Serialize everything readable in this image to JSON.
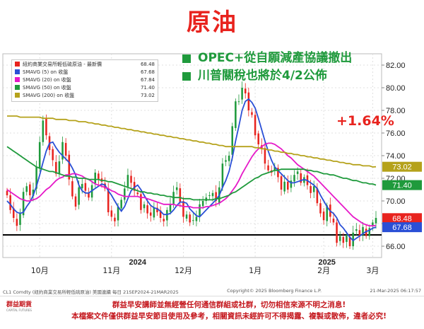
{
  "title": "原油",
  "bullets": [
    "OPEC+從自願減產協議撤出",
    "川普關稅也將於4/2公佈"
  ],
  "change_text": "+1.64%",
  "legend": [
    {
      "name": "紐約商業交易所輕低硫原油 - 最新價",
      "value": "68.48",
      "color": "#e8231e"
    },
    {
      "name": "SMAVG (5)  on 收盤",
      "value": "67.68",
      "color": "#2a4fd6"
    },
    {
      "name": "SMAVG (20)  on 收盤",
      "value": "67.84",
      "color": "#e619c8"
    },
    {
      "name": "SMAVG (50)  on 收盤",
      "value": "71.40",
      "color": "#1f9a3c"
    },
    {
      "name": "SMAVG (200)  on 收盤",
      "value": "73.02",
      "color": "#b5a21b"
    }
  ],
  "footer": {
    "left": "CL1 Comdty (紐約商業交易所輕低硫原油) 美國連續    每日  21SEP2024-21MAR2025",
    "center": "Copyright© 2025 Bloomberg Finance L.P.",
    "right": "21-Mar-2025 06:17:57"
  },
  "disclaimer": {
    "line1": "群益早安講師並無經營任何通信群組或社群，切勿相信來源不明之消息!",
    "line2": "本檔案文件僅供群益早安節目使用及參考，相關資訊未經許可不得揭露、複製或散佈，違者必究!"
  },
  "logo": {
    "text": "群益期貨",
    "sub": "CAPITAL FUTURES"
  },
  "chart_data": {
    "type": "line",
    "ylim": [
      65,
      83
    ],
    "yticks": [
      "66.00",
      "68.00",
      "70.00",
      "72.00",
      "74.00",
      "76.00",
      "78.00",
      "80.00",
      "82.00"
    ],
    "ytick_values": [
      66,
      68,
      70,
      72,
      74,
      76,
      78,
      80,
      82
    ],
    "month_labels": [
      "10月",
      "11月",
      "12月",
      "1月",
      "2月",
      "3月"
    ],
    "year_labels": [
      "2024",
      "2025"
    ],
    "support_level": 67.0,
    "last_value_tags": [
      {
        "value": 68.48,
        "text": "68.48",
        "color": "#e8231e"
      },
      {
        "value": 67.68,
        "text": "67.68",
        "color": "#2a4fd6"
      },
      {
        "value": 71.4,
        "text": "71.40",
        "color": "#1f9a3c"
      },
      {
        "value": 73.02,
        "text": "73.02",
        "color": "#b5a21b"
      }
    ],
    "series": [
      {
        "name": "紐約商業交易所輕低硫原油 - 最新價",
        "color": "#e8231e",
        "values": [
          70.5,
          69.2,
          68.5,
          67.8,
          68.9,
          70.8,
          71.3,
          70.5,
          71.0,
          73.0,
          75.2,
          77.1,
          75.8,
          74.5,
          73.6,
          72.4,
          73.5,
          75.2,
          74.0,
          71.9,
          70.4,
          69.5,
          71.2,
          71.5,
          70.9,
          70.3,
          71.4,
          72.5,
          71.9,
          71.7,
          71.1,
          69.0,
          68.6,
          68.2,
          69.5,
          70.1,
          71.1,
          72.3,
          71.6,
          70.9,
          70.6,
          69.2,
          69.7,
          68.9,
          68.7,
          69.4,
          69.0,
          68.5,
          68.2,
          69.2,
          69.7,
          70.8,
          71.2,
          69.9,
          68.6,
          68.8,
          68.1,
          68.3,
          68.6,
          69.7,
          70.0,
          70.3,
          70.5,
          70.7,
          70.0,
          71.2,
          73.3,
          73.6,
          74.0,
          76.6,
          78.8,
          78.8,
          80.0,
          79.5,
          78.0,
          77.6,
          75.8,
          75.0,
          74.6,
          73.3,
          72.7,
          72.5,
          73.0,
          72.1,
          71.0,
          71.7,
          71.0,
          71.8,
          72.3,
          72.6,
          71.6,
          72.1,
          71.4,
          70.7,
          71.3,
          69.8,
          68.9,
          68.3,
          69.6,
          68.6,
          68.1,
          66.3,
          66.9,
          66.3,
          67.0,
          66.0,
          67.2,
          67.5,
          66.9,
          67.7,
          66.9,
          67.6,
          68.1,
          68.5
        ]
      },
      {
        "name": "SMAVG (5)  on 收盤",
        "color": "#2a4fd6",
        "values": [
          70.0,
          69.7,
          69.3,
          69.0,
          68.9,
          69.0,
          69.5,
          69.9,
          70.5,
          71.3,
          72.3,
          73.4,
          74.4,
          75.1,
          75.2,
          74.7,
          74.3,
          74.0,
          73.7,
          73.4,
          72.9,
          72.3,
          71.4,
          70.9,
          70.7,
          70.7,
          70.9,
          71.1,
          71.3,
          71.5,
          71.4,
          70.9,
          70.5,
          70.0,
          69.5,
          69.1,
          69.5,
          70.2,
          70.9,
          71.2,
          71.4,
          71.0,
          70.5,
          70.0,
          69.6,
          69.4,
          69.3,
          69.1,
          68.8,
          68.8,
          68.9,
          69.2,
          69.6,
          69.9,
          69.9,
          69.8,
          69.3,
          69.0,
          68.7,
          68.6,
          68.9,
          69.2,
          69.5,
          69.8,
          70.1,
          70.5,
          71.2,
          71.8,
          72.6,
          73.8,
          75.3,
          76.6,
          78.0,
          78.8,
          79.0,
          78.7,
          78.2,
          77.3,
          76.3,
          75.3,
          74.4,
          73.6,
          73.0,
          72.7,
          72.4,
          72.1,
          71.8,
          71.6,
          71.6,
          71.7,
          71.8,
          71.9,
          71.8,
          71.6,
          71.4,
          71.1,
          70.5,
          70.0,
          69.5,
          69.1,
          68.9,
          68.5,
          67.9,
          67.6,
          67.2,
          66.8,
          66.5,
          66.7,
          66.9,
          67.1,
          67.3,
          67.4,
          67.6,
          67.68
        ]
      },
      {
        "name": "SMAVG (20)  on 收盤",
        "color": "#e619c8",
        "values": [
          71.0,
          70.8,
          70.6,
          70.4,
          70.2,
          70.1,
          70.0,
          70.0,
          70.1,
          70.2,
          70.4,
          70.7,
          71.0,
          71.2,
          71.5,
          71.8,
          72.0,
          72.1,
          72.3,
          72.3,
          72.4,
          72.4,
          72.3,
          72.2,
          72.0,
          71.9,
          71.7,
          71.5,
          71.4,
          71.3,
          71.2,
          71.1,
          70.9,
          70.8,
          70.6,
          70.5,
          70.4,
          70.4,
          70.4,
          70.4,
          70.4,
          70.3,
          70.3,
          70.2,
          70.1,
          70.0,
          69.9,
          69.8,
          69.7,
          69.7,
          69.7,
          69.7,
          69.6,
          69.6,
          69.5,
          69.5,
          69.5,
          69.4,
          69.4,
          69.4,
          69.4,
          69.5,
          69.5,
          69.6,
          69.7,
          69.8,
          70.0,
          70.2,
          70.5,
          70.9,
          71.3,
          71.8,
          72.4,
          72.9,
          73.4,
          73.9,
          74.3,
          74.6,
          74.8,
          75.0,
          75.1,
          75.1,
          75.0,
          74.8,
          74.6,
          74.3,
          74.0,
          73.8,
          73.5,
          73.2,
          73.0,
          72.8,
          72.6,
          72.4,
          72.2,
          71.9,
          71.6,
          71.3,
          71.0,
          70.7,
          70.4,
          70.1,
          69.8,
          69.5,
          69.2,
          68.9,
          68.6,
          68.4,
          68.2,
          68.0,
          67.9,
          67.8,
          67.8,
          67.84
        ]
      },
      {
        "name": "SMAVG (50)  on 收盤",
        "color": "#1f9a3c",
        "values": [
          74.8,
          74.6,
          74.4,
          74.2,
          74.0,
          73.8,
          73.6,
          73.4,
          73.2,
          73.0,
          72.9,
          72.8,
          72.7,
          72.6,
          72.6,
          72.5,
          72.4,
          72.3,
          72.2,
          72.2,
          72.1,
          72.1,
          72.0,
          72.0,
          72.0,
          71.9,
          71.9,
          71.9,
          71.9,
          71.8,
          71.8,
          71.7,
          71.7,
          71.6,
          71.5,
          71.4,
          71.3,
          71.2,
          71.1,
          71.0,
          70.9,
          70.8,
          70.8,
          70.7,
          70.7,
          70.6,
          70.6,
          70.5,
          70.5,
          70.4,
          70.4,
          70.3,
          70.3,
          70.3,
          70.2,
          70.2,
          70.2,
          70.1,
          70.1,
          70.1,
          70.1,
          70.1,
          70.1,
          70.1,
          70.2,
          70.2,
          70.3,
          70.4,
          70.5,
          70.7,
          70.8,
          71.0,
          71.2,
          71.4,
          71.6,
          71.8,
          72.0,
          72.1,
          72.3,
          72.4,
          72.5,
          72.6,
          72.7,
          72.7,
          72.8,
          72.8,
          72.8,
          72.8,
          72.8,
          72.8,
          72.8,
          72.8,
          72.7,
          72.7,
          72.6,
          72.6,
          72.5,
          72.4,
          72.4,
          72.3,
          72.3,
          72.2,
          72.1,
          72.0,
          72.0,
          71.9,
          71.8,
          71.8,
          71.7,
          71.6,
          71.6,
          71.5,
          71.5,
          71.4
        ]
      },
      {
        "name": "SMAVG (200)  on 收盤",
        "color": "#b5a21b",
        "values": [
          77.5,
          77.5,
          77.5,
          77.5,
          77.4,
          77.4,
          77.4,
          77.4,
          77.4,
          77.4,
          77.4,
          77.3,
          77.3,
          77.3,
          77.3,
          77.2,
          77.2,
          77.2,
          77.2,
          77.1,
          77.1,
          77.1,
          77.0,
          77.0,
          77.0,
          76.9,
          76.9,
          76.8,
          76.8,
          76.7,
          76.7,
          76.6,
          76.6,
          76.5,
          76.5,
          76.4,
          76.4,
          76.3,
          76.3,
          76.2,
          76.2,
          76.1,
          76.1,
          76.0,
          76.0,
          75.9,
          75.9,
          75.8,
          75.8,
          75.7,
          75.7,
          75.6,
          75.6,
          75.5,
          75.5,
          75.4,
          75.4,
          75.3,
          75.3,
          75.2,
          75.2,
          75.1,
          75.1,
          75.0,
          75.0,
          74.9,
          74.9,
          74.8,
          74.8,
          74.8,
          74.8,
          74.8,
          74.8,
          74.8,
          74.8,
          74.8,
          74.7,
          74.7,
          74.6,
          74.6,
          74.5,
          74.5,
          74.4,
          74.4,
          74.3,
          74.3,
          74.2,
          74.2,
          74.1,
          74.1,
          74.0,
          74.0,
          73.9,
          73.9,
          73.8,
          73.8,
          73.7,
          73.7,
          73.6,
          73.6,
          73.5,
          73.5,
          73.4,
          73.4,
          73.3,
          73.3,
          73.2,
          73.2,
          73.2,
          73.1,
          73.1,
          73.1,
          73.0,
          73.02
        ]
      }
    ]
  }
}
